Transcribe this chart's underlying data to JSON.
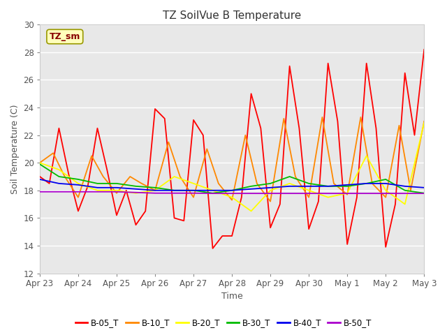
{
  "title": "TZ SoilVue B Temperature",
  "xlabel": "Time",
  "ylabel": "Soil Temperature (C)",
  "ylim": [
    12,
    30
  ],
  "yticks": [
    12,
    14,
    16,
    18,
    20,
    22,
    24,
    26,
    28,
    30
  ],
  "fig_background": "#ffffff",
  "plot_background": "#e8e8e8",
  "grid_color": "#ffffff",
  "legend_label": "TZ_sm",
  "legend_colors": {
    "B-05_T": "#ff0000",
    "B-10_T": "#ff8800",
    "B-20_T": "#ffff00",
    "B-30_T": "#00bb00",
    "B-40_T": "#0000ee",
    "B-50_T": "#aa00cc"
  },
  "series": {
    "B-05_T": {
      "color": "#ff0000",
      "times": [
        0.0,
        0.25,
        0.5,
        0.75,
        1.0,
        1.25,
        1.5,
        1.75,
        2.0,
        2.25,
        2.5,
        2.75,
        3.0,
        3.25,
        3.5,
        3.75,
        4.0,
        4.25,
        4.5,
        4.75,
        5.0,
        5.25,
        5.5,
        5.75,
        6.0,
        6.25,
        6.5,
        6.75,
        7.0,
        7.25,
        7.5,
        7.75,
        8.0,
        8.25,
        8.5,
        8.75,
        9.0,
        9.25,
        9.5,
        9.75,
        10.0
      ],
      "values": [
        19.0,
        18.5,
        22.5,
        19.2,
        16.5,
        18.3,
        22.5,
        19.5,
        16.2,
        18.0,
        15.5,
        16.5,
        23.9,
        23.2,
        16.0,
        15.8,
        23.1,
        22.0,
        13.8,
        14.7,
        14.7,
        17.5,
        25.0,
        22.5,
        15.3,
        17.0,
        27.0,
        22.5,
        15.2,
        17.2,
        27.2,
        23.0,
        14.1,
        17.5,
        27.2,
        22.5,
        13.9,
        17.0,
        26.5,
        22.0,
        28.2
      ]
    },
    "B-10_T": {
      "color": "#ff8800",
      "times": [
        0.0,
        0.35,
        0.65,
        1.0,
        1.35,
        1.65,
        2.0,
        2.35,
        2.65,
        3.0,
        3.35,
        3.65,
        4.0,
        4.35,
        4.65,
        5.0,
        5.35,
        5.65,
        6.0,
        6.35,
        6.65,
        7.0,
        7.35,
        7.65,
        8.0,
        8.35,
        8.65,
        9.0,
        9.35,
        9.65,
        10.0
      ],
      "values": [
        20.0,
        20.7,
        19.0,
        17.5,
        20.5,
        19.0,
        17.8,
        19.0,
        18.5,
        18.0,
        21.5,
        19.0,
        17.5,
        21.0,
        18.5,
        17.3,
        22.0,
        18.5,
        17.2,
        23.2,
        19.0,
        17.5,
        23.3,
        18.5,
        17.7,
        23.3,
        18.5,
        17.5,
        22.7,
        18.0,
        23.0
      ]
    },
    "B-20_T": {
      "color": "#ffff00",
      "times": [
        0.0,
        0.5,
        1.0,
        1.5,
        2.0,
        2.5,
        3.0,
        3.5,
        4.0,
        4.5,
        5.0,
        5.5,
        6.0,
        6.5,
        7.0,
        7.5,
        8.0,
        8.5,
        9.0,
        9.5,
        10.0
      ],
      "values": [
        20.0,
        19.5,
        18.5,
        18.0,
        18.0,
        17.8,
        18.0,
        19.0,
        18.5,
        18.0,
        17.5,
        16.5,
        18.0,
        18.5,
        18.0,
        17.5,
        17.8,
        20.5,
        18.0,
        17.0,
        22.9
      ]
    },
    "B-30_T": {
      "color": "#00bb00",
      "times": [
        0.0,
        0.5,
        1.0,
        1.5,
        2.0,
        2.5,
        3.0,
        3.5,
        4.0,
        4.5,
        5.0,
        5.5,
        6.0,
        6.5,
        7.0,
        7.5,
        8.0,
        8.5,
        9.0,
        9.5,
        10.0
      ],
      "values": [
        19.9,
        19.0,
        18.8,
        18.5,
        18.5,
        18.3,
        18.2,
        18.0,
        18.0,
        17.8,
        18.0,
        18.3,
        18.5,
        19.0,
        18.5,
        18.3,
        18.3,
        18.5,
        18.8,
        18.0,
        17.8
      ]
    },
    "B-40_T": {
      "color": "#0000ee",
      "times": [
        0.0,
        0.5,
        1.0,
        1.5,
        2.0,
        2.5,
        3.0,
        3.5,
        4.0,
        4.5,
        5.0,
        5.5,
        6.0,
        6.5,
        7.0,
        7.5,
        8.0,
        8.5,
        9.0,
        9.5,
        10.0
      ],
      "values": [
        18.8,
        18.5,
        18.4,
        18.2,
        18.2,
        18.1,
        18.0,
        18.0,
        18.0,
        18.0,
        18.0,
        18.1,
        18.2,
        18.3,
        18.3,
        18.3,
        18.4,
        18.5,
        18.5,
        18.3,
        18.2
      ]
    },
    "B-50_T": {
      "color": "#aa00cc",
      "times": [
        0.0,
        0.5,
        1.0,
        1.5,
        2.0,
        2.5,
        3.0,
        3.5,
        4.0,
        4.5,
        5.0,
        5.5,
        6.0,
        6.5,
        7.0,
        7.5,
        8.0,
        8.5,
        9.0,
        9.5,
        10.0
      ],
      "values": [
        17.9,
        17.9,
        17.9,
        17.9,
        17.9,
        17.85,
        17.8,
        17.8,
        17.8,
        17.78,
        17.78,
        17.78,
        17.78,
        17.78,
        17.78,
        17.78,
        17.78,
        17.78,
        17.78,
        17.78,
        17.78
      ]
    }
  },
  "xtick_positions": [
    0,
    1,
    2,
    3,
    4,
    5,
    6,
    7,
    8,
    9,
    10
  ],
  "xtick_labels": [
    "Apr 23",
    "Apr 24",
    "Apr 25",
    "Apr 26",
    "Apr 27",
    "Apr 28",
    "Apr 29",
    "Apr 30",
    "May 1",
    "May 2",
    "May 3"
  ],
  "series_order": [
    "B-05_T",
    "B-10_T",
    "B-20_T",
    "B-30_T",
    "B-40_T",
    "B-50_T"
  ]
}
